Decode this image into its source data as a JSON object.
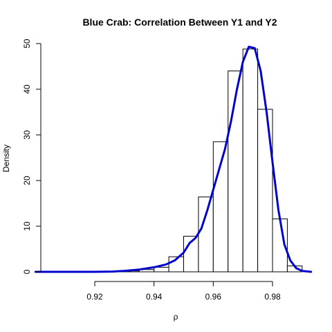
{
  "chart_data": {
    "type": "histogram",
    "title": "Blue Crab: Correlation Between Y1 and Y2",
    "xlabel": "ρ",
    "ylabel": "Density",
    "xlim": [
      0.9,
      0.993
    ],
    "ylim": [
      0,
      50
    ],
    "x_ticks": [
      0.92,
      0.94,
      0.96,
      0.98
    ],
    "x_tick_labels": [
      "0.92",
      "0.94",
      "0.96",
      "0.98"
    ],
    "y_ticks": [
      0,
      10,
      20,
      30,
      40,
      50
    ],
    "y_tick_labels": [
      "0",
      "10",
      "20",
      "30",
      "40",
      "50"
    ],
    "grid": false,
    "bins": [
      {
        "start": 0.925,
        "end": 0.93,
        "density": 0.1
      },
      {
        "start": 0.93,
        "end": 0.935,
        "density": 0.2
      },
      {
        "start": 0.935,
        "end": 0.94,
        "density": 0.5
      },
      {
        "start": 0.94,
        "end": 0.945,
        "density": 1.0
      },
      {
        "start": 0.945,
        "end": 0.95,
        "density": 3.3
      },
      {
        "start": 0.95,
        "end": 0.955,
        "density": 7.8
      },
      {
        "start": 0.955,
        "end": 0.96,
        "density": 16.4
      },
      {
        "start": 0.96,
        "end": 0.965,
        "density": 28.5
      },
      {
        "start": 0.965,
        "end": 0.97,
        "density": 44.0
      },
      {
        "start": 0.97,
        "end": 0.975,
        "density": 48.8
      },
      {
        "start": 0.975,
        "end": 0.98,
        "density": 35.6
      },
      {
        "start": 0.98,
        "end": 0.985,
        "density": 11.6
      },
      {
        "start": 0.985,
        "end": 0.99,
        "density": 1.3
      }
    ],
    "density_curve": {
      "color": "#0000cc",
      "points": [
        [
          0.9,
          0.0
        ],
        [
          0.92,
          0.0
        ],
        [
          0.926,
          0.05
        ],
        [
          0.93,
          0.2
        ],
        [
          0.935,
          0.5
        ],
        [
          0.94,
          1.0
        ],
        [
          0.944,
          1.6
        ],
        [
          0.947,
          2.5
        ],
        [
          0.95,
          4.2
        ],
        [
          0.952,
          6.3
        ],
        [
          0.954,
          7.4
        ],
        [
          0.956,
          9.5
        ],
        [
          0.958,
          13.5
        ],
        [
          0.96,
          18.0
        ],
        [
          0.962,
          22.5
        ],
        [
          0.964,
          27.0
        ],
        [
          0.966,
          33.0
        ],
        [
          0.968,
          40.0
        ],
        [
          0.97,
          46.0
        ],
        [
          0.972,
          49.3
        ],
        [
          0.974,
          49.0
        ],
        [
          0.976,
          44.0
        ],
        [
          0.978,
          35.0
        ],
        [
          0.98,
          24.0
        ],
        [
          0.982,
          13.5
        ],
        [
          0.984,
          6.0
        ],
        [
          0.986,
          2.5
        ],
        [
          0.988,
          0.8
        ],
        [
          0.99,
          0.2
        ],
        [
          0.993,
          0.0
        ]
      ]
    }
  }
}
